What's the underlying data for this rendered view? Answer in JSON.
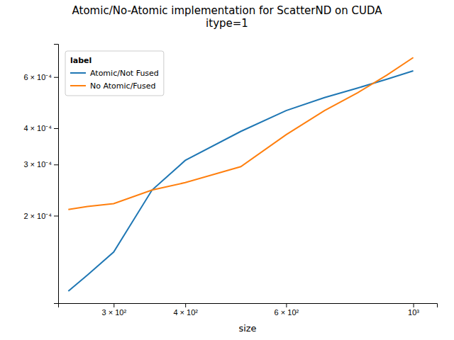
{
  "chart_data": {
    "type": "line",
    "title": "Atomic/No-Atomic implementation for ScatterND on CUDA\nitype=1",
    "xlabel": "size",
    "legend_title": "label",
    "x": [
      250,
      270,
      300,
      350,
      400,
      500,
      600,
      700,
      800,
      900,
      1000
    ],
    "series": [
      {
        "name": "Atomic/Not Fused",
        "color": "#1f77b4",
        "values": [
          0.00011,
          0.000125,
          0.00015,
          0.000245,
          0.00031,
          0.00039,
          0.00046,
          0.00051,
          0.00055,
          0.00059,
          0.00063
        ]
      },
      {
        "name": "No Atomic/Fused",
        "color": "#ff7f0e",
        "values": [
          0.00021,
          0.000215,
          0.00022,
          0.000245,
          0.00026,
          0.000295,
          0.00038,
          0.00046,
          0.00053,
          0.00061,
          0.0007
        ]
      }
    ],
    "log": true,
    "xlim": [
      240,
      1100
    ],
    "ylim": [
      0.0001,
      0.00078
    ],
    "xticks": [
      {
        "value": 300,
        "label": "3 × 10²"
      },
      {
        "value": 400,
        "label": "4 × 10²"
      },
      {
        "value": 600,
        "label": "6 × 10²"
      },
      {
        "value": 1000,
        "label": "10³"
      }
    ],
    "yticks": [
      {
        "value": 0.0002,
        "label": "2 × 10⁻⁴"
      },
      {
        "value": 0.0003,
        "label": "3 × 10⁻⁴"
      },
      {
        "value": 0.0004,
        "label": "4 × 10⁻⁴"
      },
      {
        "value": 0.0006,
        "label": "6 × 10⁻⁴"
      }
    ],
    "grid": false,
    "legend": "upper left"
  }
}
